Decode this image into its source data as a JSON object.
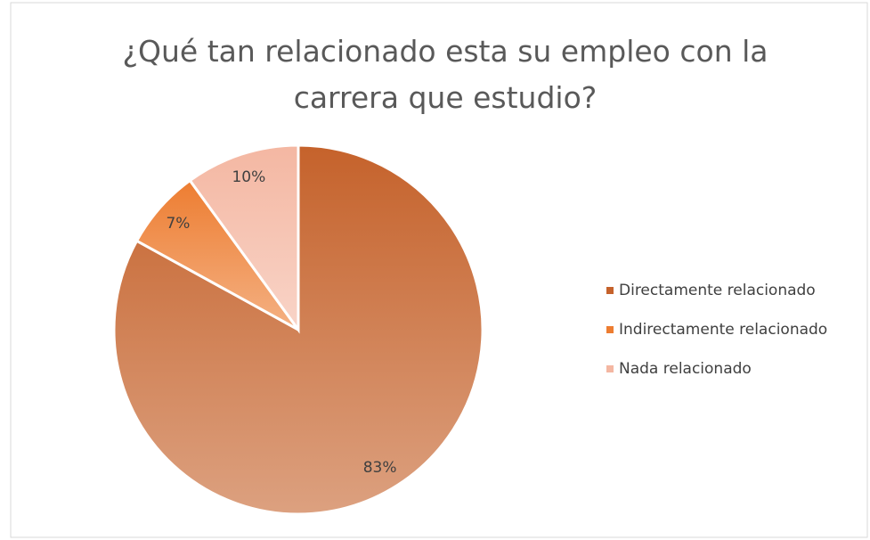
{
  "chart_data": {
    "type": "pie",
    "title": "¿Qué tan relacionado esta su empleo con la carrera que estudio?",
    "categories": [
      "Directamente relacionado",
      "Indirectamente relacionado",
      "Nada relacionado"
    ],
    "values": [
      83,
      7,
      10
    ],
    "value_labels": [
      "83%",
      "7%",
      "10%"
    ],
    "colors": [
      "#c5622b",
      "#ed7d31",
      "#f4b7a2"
    ],
    "legend": "right"
  }
}
